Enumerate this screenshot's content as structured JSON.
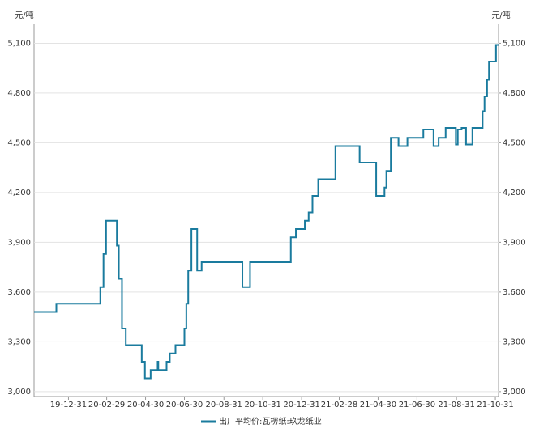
{
  "chart_data": {
    "type": "line",
    "step": true,
    "y_label": "元/吨",
    "y2_label": "元/吨",
    "x": [
      "19-11-07",
      "19-12-12",
      "20-02-19",
      "20-02-24",
      "20-02-28",
      "20-03-16",
      "20-03-19",
      "20-03-24",
      "20-03-30",
      "20-04-24",
      "20-04-29",
      "20-05-08",
      "20-05-19",
      "20-05-20",
      "20-06-02",
      "20-06-07",
      "20-06-16",
      "20-06-30",
      "20-07-03",
      "20-07-06",
      "20-07-11",
      "20-07-20",
      "20-07-27",
      "20-09-29",
      "20-10-11",
      "20-12-14",
      "20-12-22",
      "21-01-05",
      "21-01-11",
      "21-01-17",
      "21-01-26",
      "21-02-22",
      "21-04-01",
      "21-04-27",
      "21-05-10",
      "21-05-13",
      "21-05-20",
      "21-06-01",
      "21-06-15",
      "21-07-10",
      "21-07-26",
      "21-08-03",
      "21-08-14",
      "21-08-30",
      "21-09-02",
      "21-09-08",
      "21-09-15",
      "21-09-25",
      "21-10-11",
      "21-10-14",
      "21-10-18",
      "21-10-21",
      "21-11-01",
      "21-11-05"
    ],
    "series": [
      {
        "name": "出厂平均价:瓦楞纸:玖龙纸业",
        "color": "#1a7b9e",
        "values": [
          3480,
          3530,
          3630,
          3830,
          4030,
          3880,
          3680,
          3380,
          3280,
          3180,
          3080,
          3130,
          3180,
          3130,
          3180,
          3230,
          3280,
          3380,
          3530,
          3730,
          3980,
          3730,
          3780,
          3630,
          3780,
          3930,
          3980,
          4030,
          4080,
          4180,
          4280,
          4480,
          4380,
          4180,
          4230,
          4330,
          4530,
          4480,
          4530,
          4580,
          4480,
          4530,
          4590,
          4490,
          4580,
          4590,
          4490,
          4590,
          4690,
          4780,
          4880,
          4990,
          5090,
          5090
        ]
      }
    ],
    "xlim": [
      "19-11-07",
      "21-11-05"
    ],
    "xticks": [
      "19-12-31",
      "20-02-29",
      "20-04-30",
      "20-06-30",
      "20-08-31",
      "20-10-31",
      "20-12-31",
      "21-02-28",
      "21-04-30",
      "21-06-30",
      "21-08-31",
      "21-10-31"
    ],
    "ylim": [
      2970,
      5190
    ],
    "yticks": [
      {
        "value": 3000,
        "label": "3,000"
      },
      {
        "value": 3300,
        "label": "3,300"
      },
      {
        "value": 3600,
        "label": "3,600"
      },
      {
        "value": 3900,
        "label": "3,900"
      },
      {
        "value": 4200,
        "label": "4,200"
      },
      {
        "value": 4500,
        "label": "4,500"
      },
      {
        "value": 4800,
        "label": "4,800"
      },
      {
        "value": 5100,
        "label": "5,100"
      }
    ],
    "y2lim": [
      2970,
      5190
    ],
    "y2ticks": [
      {
        "value": 3000,
        "label": "3,000"
      },
      {
        "value": 3300,
        "label": "3,300"
      },
      {
        "value": 3600,
        "label": "3,600"
      },
      {
        "value": 3900,
        "label": "3,900"
      },
      {
        "value": 4200,
        "label": "4,200"
      },
      {
        "value": 4500,
        "label": "4,500"
      },
      {
        "value": 4800,
        "label": "4,800"
      },
      {
        "value": 5100,
        "label": "5,100"
      }
    ],
    "grid": true,
    "legend": "bottom"
  }
}
